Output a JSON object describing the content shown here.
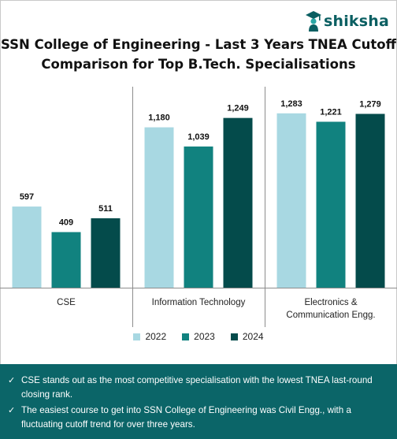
{
  "brand": {
    "name": "shiksha"
  },
  "title_lines": [
    "SSN College of Engineering - Last 3 Years TNEA Cutoff",
    "Comparison for Top B.Tech. Specialisations"
  ],
  "chart_data": {
    "type": "bar",
    "categories": [
      "CSE",
      "Information Technology",
      "Electronics & Communication Engg."
    ],
    "category_lines": [
      [
        "CSE"
      ],
      [
        "Information Technology"
      ],
      [
        "Electronics &",
        "Communication Engg."
      ]
    ],
    "series": [
      {
        "name": "2022",
        "color": "#a8d8e2",
        "values": [
          597,
          1180,
          1283
        ],
        "labels": [
          "597",
          "1,180",
          "1,283"
        ]
      },
      {
        "name": "2023",
        "color": "#11827f",
        "values": [
          409,
          1039,
          1221
        ],
        "labels": [
          "409",
          "1,039",
          "1,221"
        ]
      },
      {
        "name": "2024",
        "color": "#044b4b",
        "values": [
          511,
          1249,
          1279
        ],
        "labels": [
          "511",
          "1,249",
          "1,279"
        ]
      }
    ],
    "ylim": [
      0,
      1450
    ],
    "grid": false,
    "legend": "bottom"
  },
  "notes": [
    "CSE stands out as the most competitive specialisation with the lowest TNEA last-round closing rank.",
    "The easiest course to get into SSN College of Engineering was Civil Engg., with a fluctuating cutoff trend for over three years."
  ],
  "check_glyph": "✓"
}
